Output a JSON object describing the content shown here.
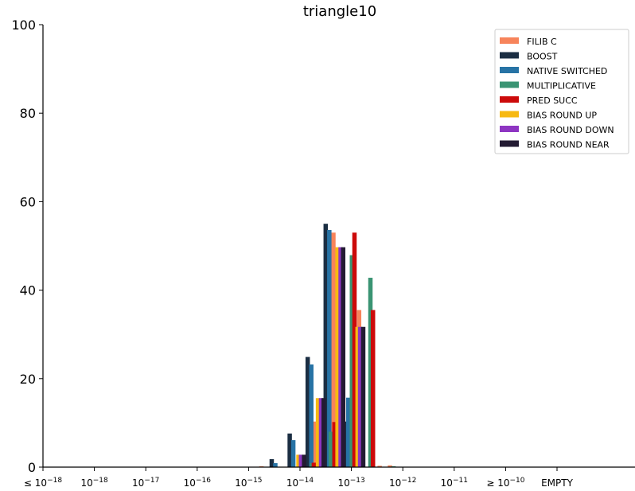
{
  "chart_data": {
    "type": "bar",
    "title": "triangle10",
    "xlabel": "",
    "ylabel": "",
    "ylim": [
      0,
      100
    ],
    "yticks": [
      0,
      20,
      40,
      60,
      80,
      100
    ],
    "grid": false,
    "legend_position": "top-right",
    "categories": [
      {
        "base": "≤ 10",
        "exp": "−18"
      },
      {
        "base": "10",
        "exp": "−18"
      },
      {
        "base": "10",
        "exp": "−17"
      },
      {
        "base": "10",
        "exp": "−16"
      },
      {
        "base": "10",
        "exp": "−15"
      },
      {
        "base": "10",
        "exp": "−14"
      },
      {
        "base": "10",
        "exp": "−13"
      },
      {
        "base": "10",
        "exp": "−12"
      },
      {
        "base": "10",
        "exp": "−11"
      },
      {
        "base": "≥ 10",
        "exp": "−10"
      },
      {
        "base": "EMPTY",
        "exp": ""
      }
    ],
    "series": [
      {
        "name": "FILIB C",
        "color": "#F7845B",
        "values": [
          [
            4.25,
            0.2
          ],
          [
            4.45,
            0.1
          ],
          [
            4.85,
            0.3
          ],
          [
            5.3,
            10.3
          ],
          [
            5.65,
            53.0
          ],
          [
            6.15,
            35.5
          ],
          [
            6.55,
            0.3
          ],
          [
            6.75,
            0.4
          ]
        ]
      },
      {
        "name": "BOOST",
        "color": "#1B2E43",
        "values": [
          [
            4.45,
            1.8
          ],
          [
            4.8,
            7.6
          ],
          [
            5.15,
            24.9
          ],
          [
            5.5,
            55.0
          ],
          [
            5.87,
            10.3
          ]
        ]
      },
      {
        "name": "NATIVE SWITCHED",
        "color": "#2773A5",
        "values": [
          [
            4.52,
            0.9
          ],
          [
            4.87,
            6.1
          ],
          [
            5.22,
            23.2
          ],
          [
            5.57,
            53.6
          ],
          [
            5.94,
            15.7
          ]
        ]
      },
      {
        "name": "MULTIPLICATIVE",
        "color": "#3A9473",
        "values": [
          [
            5.23,
            0.9
          ],
          [
            5.6,
            8.0
          ],
          [
            6.01,
            47.9
          ],
          [
            6.37,
            42.8
          ],
          [
            6.82,
            0.2
          ]
        ]
      },
      {
        "name": "PRED SUCC",
        "color": "#CC0A0A",
        "values": [
          [
            5.27,
            1.0
          ],
          [
            5.67,
            10.2
          ],
          [
            6.06,
            53.0
          ],
          [
            6.42,
            35.5
          ]
        ]
      },
      {
        "name": "BIAS ROUND UP",
        "color": "#F7B911",
        "values": [
          [
            4.97,
            2.8
          ],
          [
            5.35,
            15.6
          ],
          [
            5.73,
            49.7
          ],
          [
            6.12,
            31.7
          ]
        ]
      },
      {
        "name": "BIAS ROUND DOWN",
        "color": "#8E35C2",
        "values": [
          [
            5.02,
            2.8
          ],
          [
            5.41,
            15.6
          ],
          [
            5.79,
            49.7
          ],
          [
            6.17,
            31.7
          ]
        ]
      },
      {
        "name": "BIAS ROUND NEAR",
        "color": "#231B33",
        "values": [
          [
            5.08,
            2.8
          ],
          [
            5.46,
            15.6
          ],
          [
            5.84,
            49.7
          ],
          [
            6.23,
            31.7
          ]
        ]
      }
    ]
  }
}
